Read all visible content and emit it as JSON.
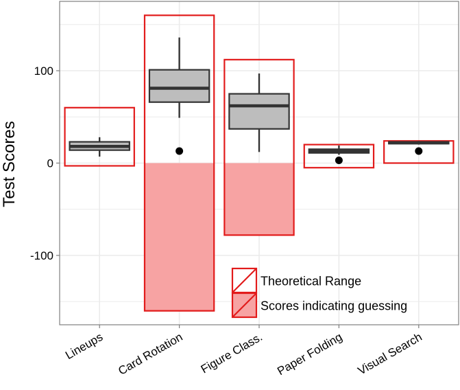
{
  "chart_data": {
    "type": "box",
    "title": "",
    "xlabel": "",
    "ylabel": "Test Scores",
    "ylim": [
      -170,
      172
    ],
    "yticks": [
      -100,
      0,
      100
    ],
    "grid": true,
    "legend_position": "bottom-right inside plot",
    "categories": [
      "Lineups",
      "Card Rotation",
      "Figure Class.",
      "Paper Folding",
      "Visual Search"
    ],
    "boxes": [
      {
        "category": "Lineups",
        "whisker_low": 7,
        "q1": 14,
        "median": 18,
        "q3": 23,
        "whisker_high": 28
      },
      {
        "category": "Card Rotation",
        "whisker_low": 49,
        "q1": 66,
        "median": 81,
        "q3": 101,
        "whisker_high": 136
      },
      {
        "category": "Figure Class.",
        "whisker_low": 12,
        "q1": 37,
        "median": 62,
        "q3": 75,
        "whisker_high": 97
      },
      {
        "category": "Paper Folding",
        "whisker_low": 9,
        "q1": 11,
        "median": 13,
        "q3": 15,
        "whisker_high": 19
      },
      {
        "category": "Visual Search",
        "whisker_low": 20,
        "q1": 21,
        "median": 22,
        "q3": 23,
        "whisker_high": 24
      }
    ],
    "theoretical_range": [
      {
        "category": "Lineups",
        "min": -3,
        "max": 60
      },
      {
        "category": "Card Rotation",
        "min": -160,
        "max": 160
      },
      {
        "category": "Figure Class.",
        "min": -78,
        "max": 112
      },
      {
        "category": "Paper Folding",
        "min": -5,
        "max": 20
      },
      {
        "category": "Visual Search",
        "min": 0,
        "max": 24
      }
    ],
    "guessing_region": [
      {
        "category": "Card Rotation",
        "min": -160,
        "max": 0
      },
      {
        "category": "Figure Class.",
        "min": -78,
        "max": 0
      }
    ],
    "guessing_points": [
      {
        "category": "Card Rotation",
        "value": 13
      },
      {
        "category": "Paper Folding",
        "value": 3
      },
      {
        "category": "Visual Search",
        "value": 13
      }
    ],
    "legend": [
      {
        "label": "Theoretical Range",
        "style": "outline"
      },
      {
        "label": "Scores indicating guessing",
        "style": "filled"
      }
    ],
    "colors": {
      "range_stroke": "#e21b1b",
      "guess_fill": "#f7a3a3",
      "box_fill": "#bdbdbd",
      "box_stroke": "#333333",
      "point": "#000000",
      "grid": "#ebebeb",
      "panel_border": "#7f7f7f"
    }
  }
}
